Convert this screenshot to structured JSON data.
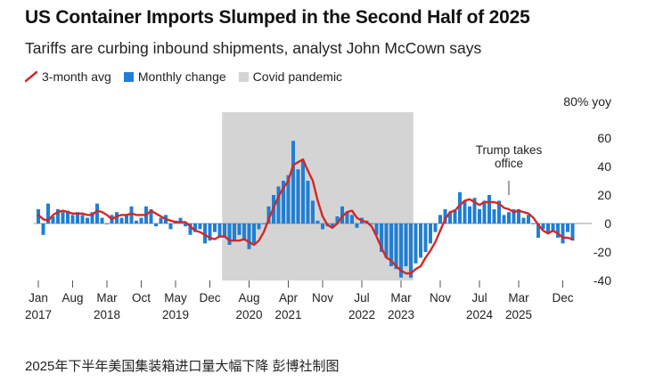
{
  "title": "US Container Imports Slumped in the Second Half of 2025",
  "subtitle": "Tariffs are curbing inbound shipments, analyst John McCown says",
  "legend": {
    "line": "3-month avg",
    "bar": "Monthly change",
    "shade": "Covid pandemic"
  },
  "caption": "2025年下半年美国集装箱进口量大幅下降 彭博社制图",
  "colors": {
    "bar": "#1f7fd4",
    "line": "#d42727",
    "shade": "#d4d4d4",
    "zero": "#999999",
    "text": "#222222"
  },
  "chart_data": {
    "type": "bar",
    "title": "US Container Imports Slumped in the Second Half of 2025",
    "subtitle": "Tariffs are curbing inbound shipments, analyst John McCown says",
    "unit_label": "80% yoy",
    "ylim": [
      -48,
      80
    ],
    "y_ticks": [
      60,
      40,
      20,
      0,
      -20,
      -40
    ],
    "x_tick_labels": [
      {
        "month_index": 0,
        "label": "Jan",
        "year": "2017"
      },
      {
        "month_index": 7,
        "label": "Aug",
        "year": ""
      },
      {
        "month_index": 14,
        "label": "Mar",
        "year": "2018"
      },
      {
        "month_index": 21,
        "label": "Oct",
        "year": ""
      },
      {
        "month_index": 28,
        "label": "May",
        "year": "2019"
      },
      {
        "month_index": 35,
        "label": "Dec",
        "year": ""
      },
      {
        "month_index": 43,
        "label": "Aug",
        "year": "2020"
      },
      {
        "month_index": 51,
        "label": "Apr",
        "year": "2021"
      },
      {
        "month_index": 58,
        "label": "Nov",
        "year": ""
      },
      {
        "month_index": 66,
        "label": "Jul",
        "year": "2022"
      },
      {
        "month_index": 74,
        "label": "Mar",
        "year": "2023"
      },
      {
        "month_index": 82,
        "label": "Nov",
        "year": ""
      },
      {
        "month_index": 90,
        "label": "Jul",
        "year": "2024"
      },
      {
        "month_index": 98,
        "label": "Mar",
        "year": "2025"
      },
      {
        "month_index": 107,
        "label": "Dec",
        "year": ""
      }
    ],
    "covid_shade": {
      "start_month_index": 38,
      "end_month_index": 76
    },
    "annotation": {
      "month_index": 96,
      "text": [
        "Trump takes",
        "office"
      ]
    },
    "series": [
      {
        "name": "Monthly change",
        "type": "bar",
        "values": [
          10,
          -8,
          14,
          5,
          10,
          8,
          9,
          6,
          8,
          6,
          4,
          8,
          14,
          4,
          0,
          6,
          8,
          4,
          6,
          12,
          2,
          4,
          12,
          10,
          -2,
          4,
          6,
          -4,
          2,
          4,
          -2,
          -8,
          -6,
          -4,
          -14,
          -12,
          -6,
          -10,
          -10,
          -15,
          -12,
          -8,
          -12,
          -18,
          -14,
          -4,
          0,
          12,
          20,
          26,
          30,
          34,
          58,
          38,
          44,
          30,
          16,
          2,
          -4,
          -2,
          -3,
          5,
          12,
          8,
          6,
          -3,
          4,
          2,
          0,
          -8,
          -20,
          -24,
          -30,
          -32,
          -38,
          -30,
          -38,
          -28,
          -24,
          -20,
          -14,
          -6,
          6,
          10,
          8,
          10,
          22,
          16,
          12,
          18,
          10,
          16,
          20,
          10,
          16,
          6,
          8,
          10,
          10,
          4,
          6,
          0,
          -10,
          -4,
          -6,
          -6,
          -10,
          -14,
          -6,
          -12
        ]
      },
      {
        "name": "3-month avg",
        "type": "line",
        "values": [
          6,
          3,
          2,
          6,
          8,
          9,
          8,
          7,
          7,
          7,
          6,
          6,
          9,
          8,
          6,
          3,
          5,
          6,
          6,
          7,
          6,
          6,
          6,
          9,
          7,
          5,
          3,
          2,
          1,
          1,
          1,
          -2,
          -5,
          -6,
          -8,
          -10,
          -11,
          -9,
          -9,
          -12,
          -12,
          -12,
          -11,
          -13,
          -15,
          -12,
          -6,
          3,
          11,
          19,
          25,
          30,
          41,
          43,
          45,
          37,
          30,
          16,
          5,
          -1,
          -3,
          0,
          5,
          8,
          9,
          4,
          2,
          1,
          -2,
          -9,
          -17,
          -24,
          -26,
          -30,
          -33,
          -35,
          -35,
          -32,
          -30,
          -24,
          -19,
          -13,
          -5,
          3,
          8,
          9,
          13,
          16,
          17,
          15,
          13,
          15,
          15,
          15,
          14,
          11,
          10,
          8,
          9,
          8,
          7,
          4,
          -1,
          -5,
          -7,
          -5,
          -7,
          -10,
          -10,
          -11
        ]
      }
    ]
  }
}
